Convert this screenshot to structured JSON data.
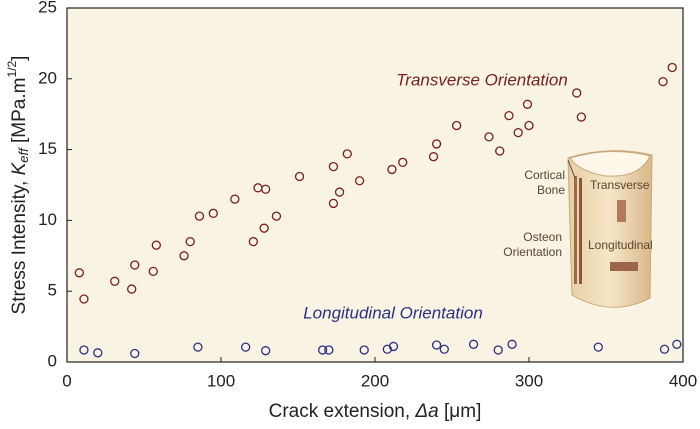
{
  "chart_data": {
    "type": "scatter",
    "x_label": [
      "Crack extension, ",
      "Δa",
      " [μm]"
    ],
    "y_label": [
      "Stress Intensity, ",
      "K",
      "eff",
      " [MPa.m",
      "1/2",
      "]"
    ],
    "xlim": [
      0,
      400
    ],
    "xticks": [
      0,
      100,
      200,
      300,
      400
    ],
    "ylim": [
      0,
      25
    ],
    "yticks": [
      0,
      5,
      10,
      15,
      20,
      25
    ],
    "grid": false,
    "series": [
      {
        "name": "Transverse Orientation",
        "color": "#7a1f1f",
        "x": [
          8,
          11,
          31,
          42,
          44,
          56,
          58,
          76,
          80,
          86,
          95,
          109,
          121,
          124,
          129,
          128,
          136,
          151,
          173,
          173,
          177,
          182,
          190,
          211,
          218,
          238,
          240,
          253,
          274,
          281,
          287,
          293,
          299,
          300,
          331,
          334,
          387,
          393
        ],
        "values": [
          6.3,
          4.45,
          5.7,
          5.15,
          6.85,
          6.4,
          8.25,
          7.5,
          8.5,
          10.3,
          10.5,
          11.5,
          8.5,
          12.3,
          12.2,
          9.45,
          10.3,
          13.1,
          11.2,
          13.8,
          12.0,
          14.7,
          12.8,
          13.6,
          14.1,
          14.5,
          15.4,
          16.7,
          15.9,
          14.9,
          17.4,
          16.2,
          18.2,
          16.7,
          19.0,
          17.3,
          19.8,
          20.8
        ]
      },
      {
        "name": "Longitudinal Orientation",
        "color": "#2b2f86",
        "x": [
          11,
          20,
          44,
          85,
          116,
          129,
          166,
          170,
          193,
          208,
          212,
          240,
          245,
          264,
          280,
          289,
          345,
          388,
          396
        ],
        "values": [
          0.85,
          0.65,
          0.6,
          1.05,
          1.05,
          0.8,
          0.85,
          0.85,
          0.85,
          0.9,
          1.1,
          1.2,
          0.9,
          1.25,
          0.85,
          1.25,
          1.05,
          0.9,
          1.25
        ]
      }
    ],
    "inset": {
      "cortical_bone": [
        "Cortical",
        "Bone"
      ],
      "transverse": "Transverse",
      "osteon_orientation": [
        "Osteon",
        "Orientation"
      ],
      "longitudinal": "Longitudinal"
    }
  }
}
